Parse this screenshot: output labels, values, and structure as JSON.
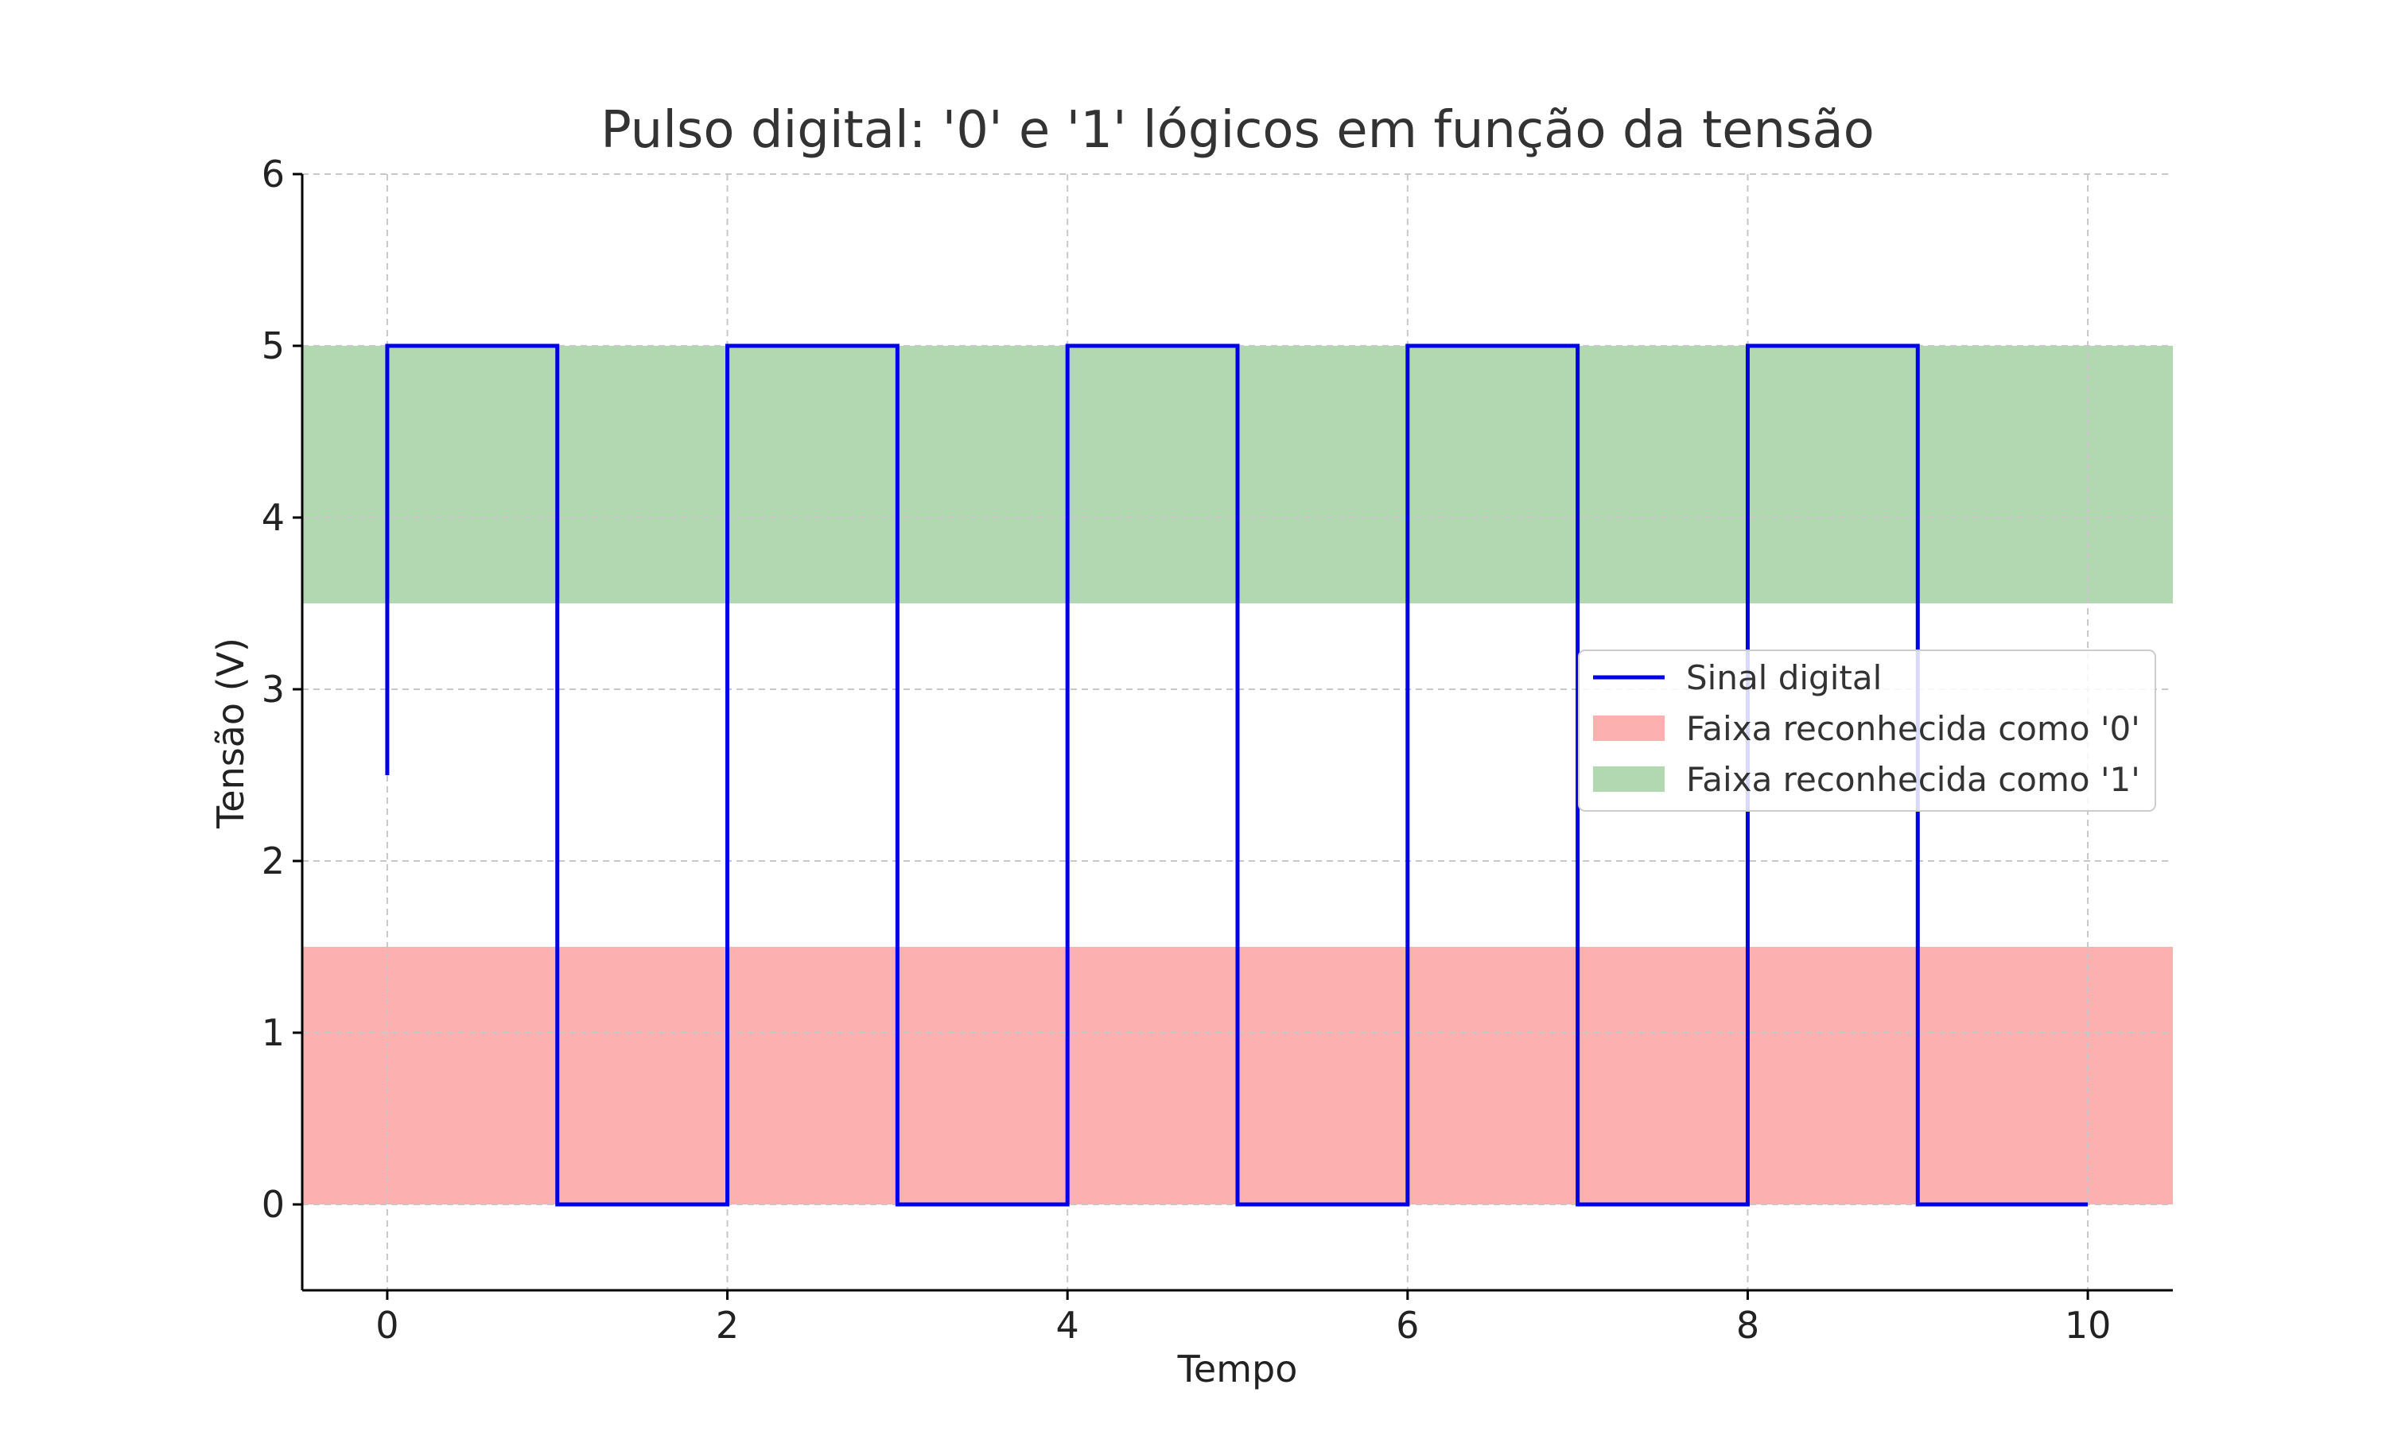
{
  "chart_data": {
    "type": "line",
    "title": "Pulso digital: '0' e '1' lógicos em função da tensão",
    "xlabel": "Tempo",
    "ylabel": "Tensão (V)",
    "xlim": [
      -0.5,
      10.5
    ],
    "ylim": [
      -0.5,
      6
    ],
    "xticks": [
      0,
      2,
      4,
      6,
      8,
      10
    ],
    "yticks": [
      0,
      1,
      2,
      3,
      4,
      5,
      6
    ],
    "grid": true,
    "grid_style": "dashed",
    "legend_position": "center-right",
    "bands": [
      {
        "name": "Faixa reconhecida como '0'",
        "y_from": 0,
        "y_to": 1.5,
        "color": "#fdb0b0"
      },
      {
        "name": "Faixa reconhecida como '1'",
        "y_from": 3.5,
        "y_to": 5,
        "color": "#b2d8b2"
      }
    ],
    "series": [
      {
        "name": "Sinal digital",
        "color": "#0000e6",
        "step": "post",
        "x": [
          0,
          0,
          1,
          2,
          3,
          4,
          5,
          6,
          7,
          8,
          9,
          10
        ],
        "y": [
          2.5,
          5,
          0,
          5,
          0,
          5,
          0,
          5,
          0,
          5,
          0,
          0
        ]
      }
    ]
  }
}
